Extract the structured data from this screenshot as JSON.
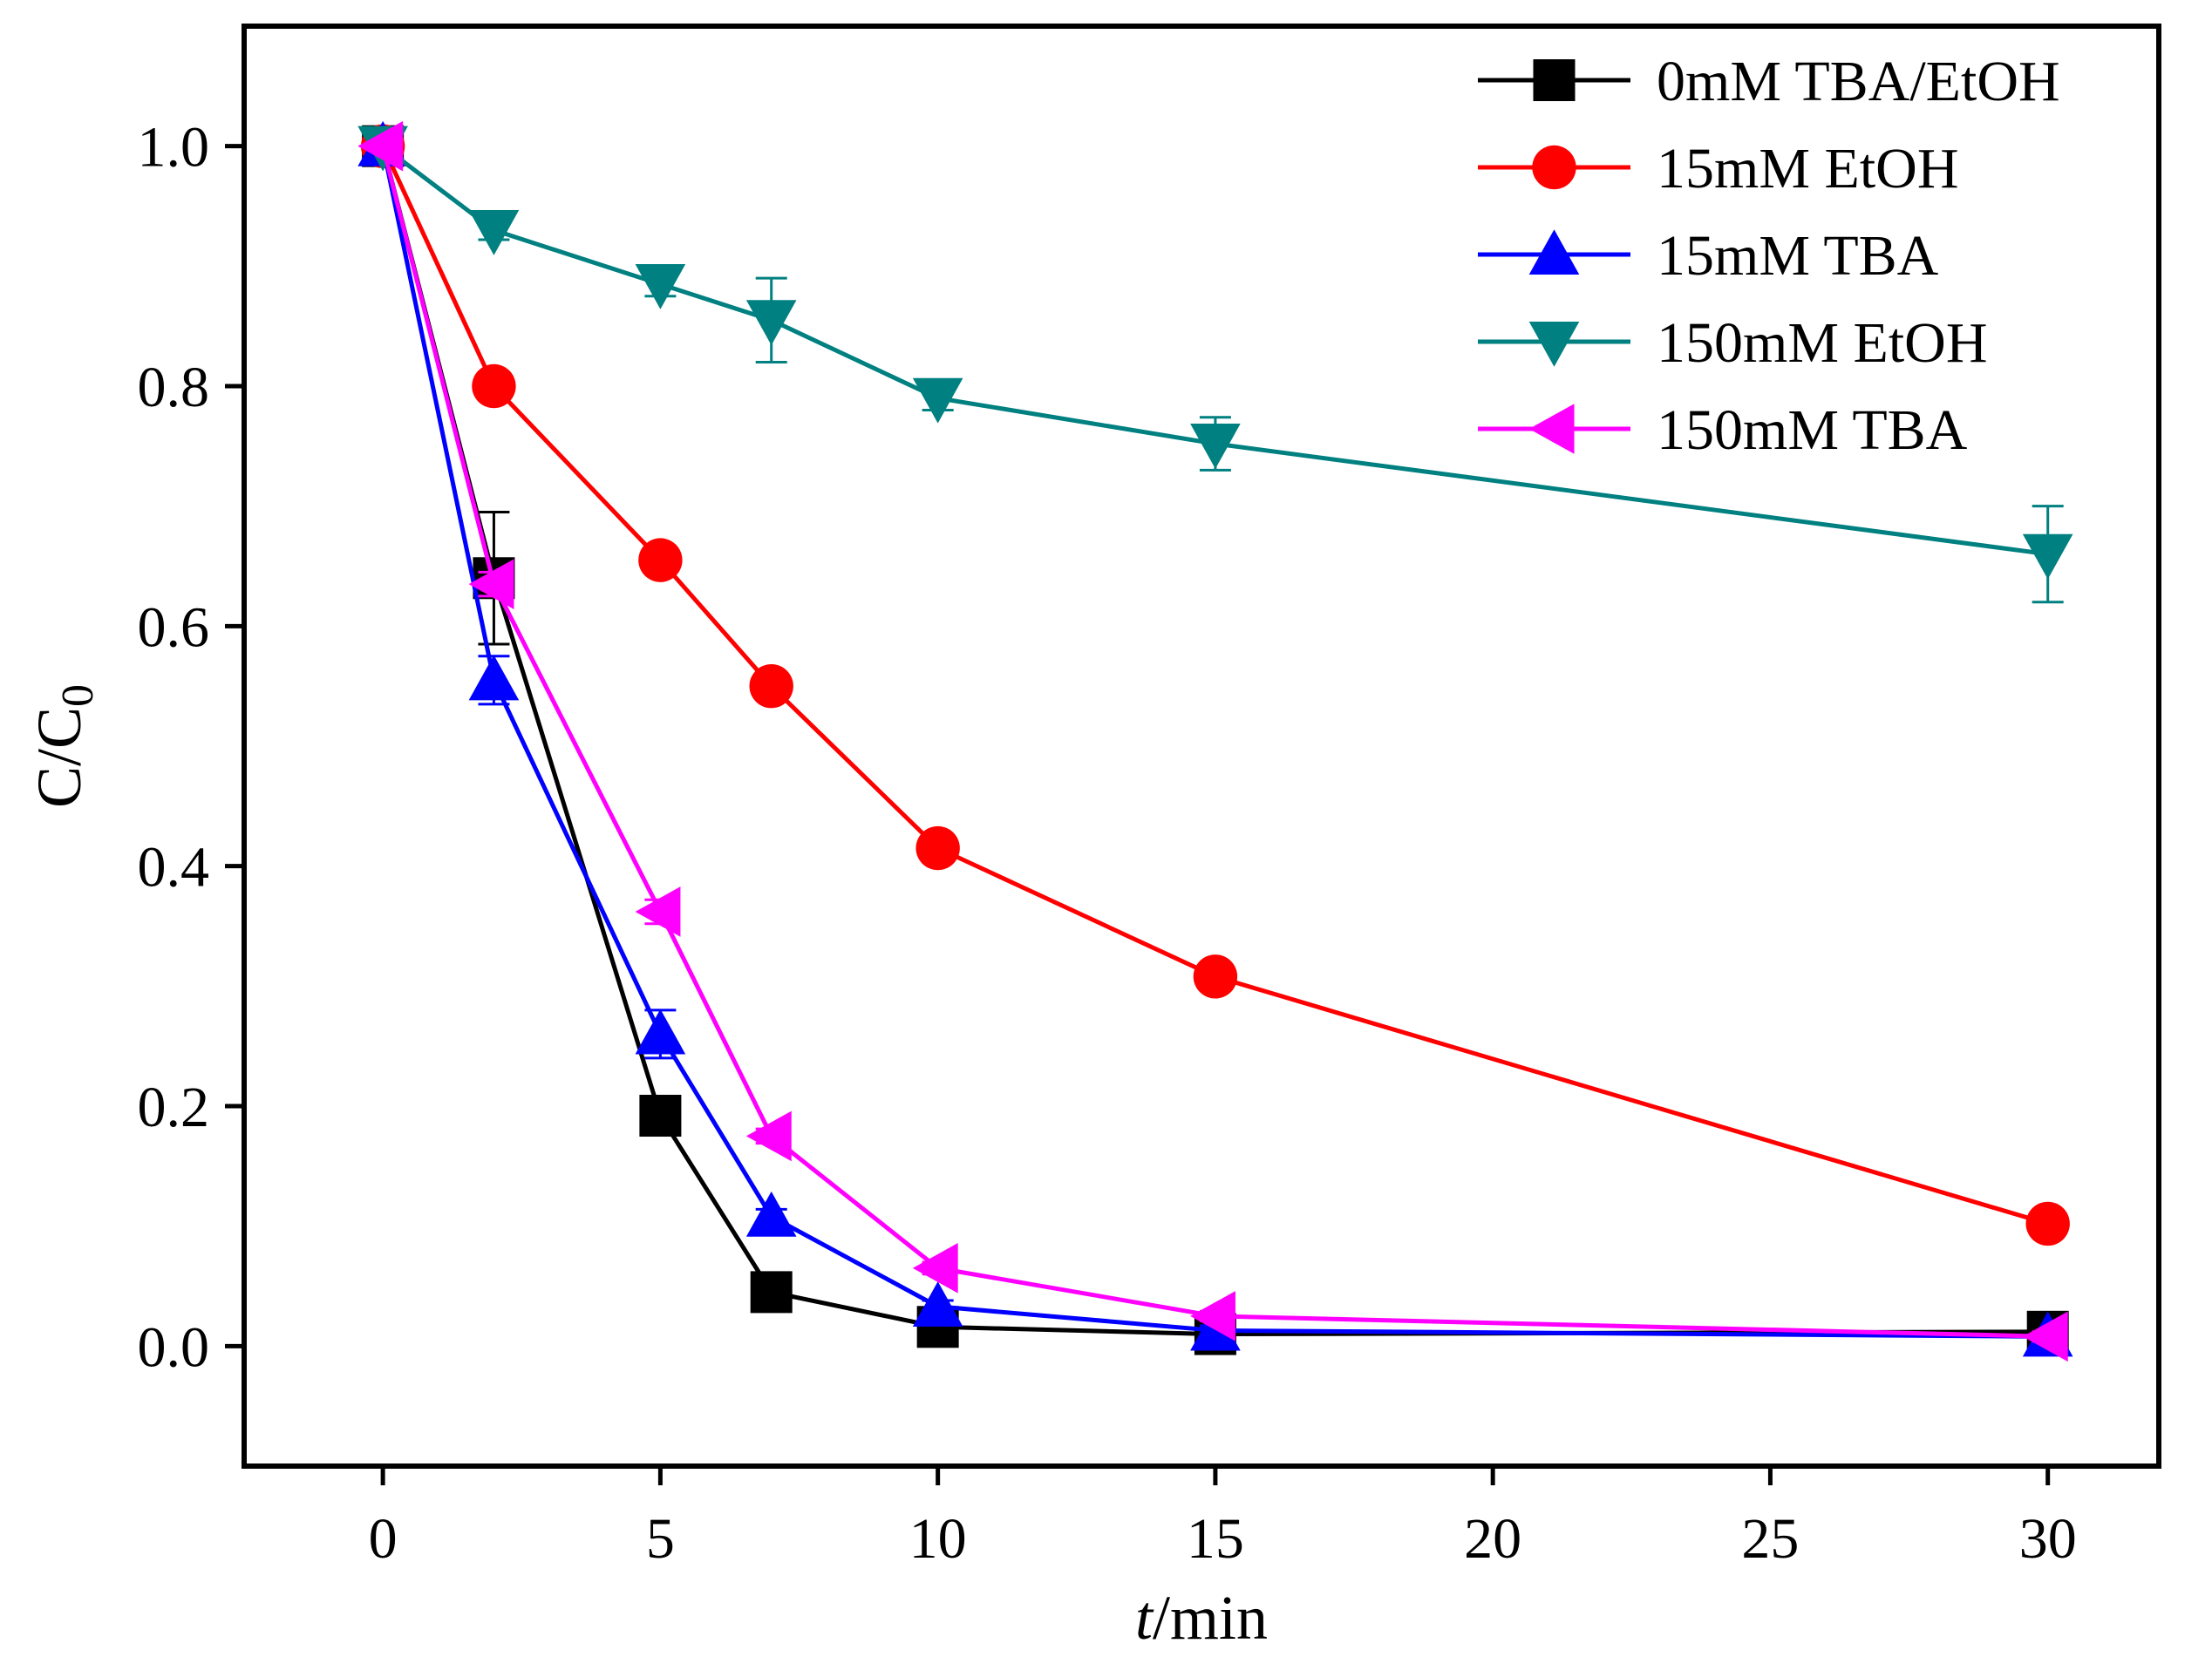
{
  "chart_data": {
    "type": "line",
    "title": "",
    "xlabel_italic": "t",
    "xlabel_rest": "/min",
    "ylabel_main": "C/C",
    "ylabel_sub": "0",
    "xlim": [
      -2.5,
      32
    ],
    "ylim": [
      -0.1,
      1.1
    ],
    "xticks": [
      0,
      5,
      10,
      15,
      20,
      25,
      30
    ],
    "xtick_labels": [
      "0",
      "5",
      "10",
      "15",
      "20",
      "25",
      "30"
    ],
    "yticks": [
      0.0,
      0.2,
      0.4,
      0.6,
      0.8,
      1.0
    ],
    "ytick_labels": [
      "0.0",
      "0.2",
      "0.4",
      "0.6",
      "0.8",
      "1.0"
    ],
    "grid": false,
    "legend_position": "top-right",
    "x": [
      0,
      2,
      5,
      7,
      10,
      15,
      30
    ],
    "series": [
      {
        "name": "0mM TBA/EtOH",
        "color": "#000000",
        "marker": "square",
        "values": [
          1.0,
          0.64,
          0.192,
          0.045,
          0.016,
          0.01,
          0.012
        ],
        "errors": [
          0.0,
          0.055,
          0.01,
          0.005,
          0.005,
          0.004,
          0.004
        ]
      },
      {
        "name": "15mM EtOH",
        "color": "#ff0000",
        "marker": "circle",
        "values": [
          1.0,
          0.8,
          0.655,
          0.55,
          0.415,
          0.308,
          0.102
        ],
        "errors": [
          0.0,
          0.008,
          0.008,
          0.008,
          0.008,
          0.008,
          0.006
        ]
      },
      {
        "name": "15mM TBA",
        "color": "#0000ff",
        "marker": "triangle-up",
        "values": [
          1.0,
          0.555,
          0.26,
          0.108,
          0.033,
          0.013,
          0.008
        ],
        "errors": [
          0.0,
          0.02,
          0.02,
          0.006,
          0.005,
          0.004,
          0.004
        ]
      },
      {
        "name": "150mM EtOH",
        "color": "#008080",
        "marker": "triangle-down",
        "values": [
          1.0,
          0.93,
          0.885,
          0.855,
          0.79,
          0.752,
          0.66
        ],
        "errors": [
          0.0,
          0.008,
          0.01,
          0.035,
          0.01,
          0.022,
          0.04
        ]
      },
      {
        "name": "150mM TBA",
        "color": "#ff00ff",
        "marker": "triangle-left",
        "values": [
          1.0,
          0.635,
          0.362,
          0.175,
          0.065,
          0.025,
          0.008
        ],
        "errors": [
          0.0,
          0.01,
          0.01,
          0.006,
          0.005,
          0.004,
          0.004
        ]
      }
    ]
  }
}
